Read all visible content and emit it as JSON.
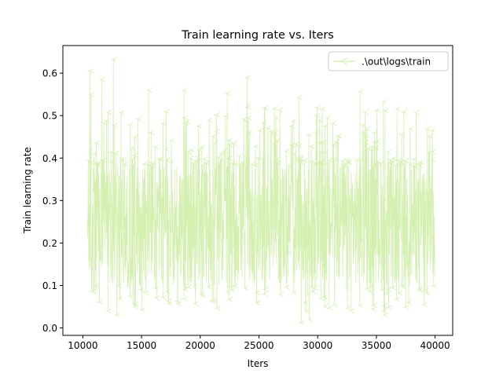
{
  "chart_data": {
    "type": "line",
    "title": "Train learning rate  vs. Iters",
    "xlabel": "Iters",
    "ylabel": "Train learning rate",
    "xlim": [
      8300,
      41500
    ],
    "ylim": [
      -0.0175,
      0.665
    ],
    "xticks": [
      10000,
      15000,
      20000,
      25000,
      30000,
      35000,
      40000
    ],
    "xtick_labels": [
      "10000",
      "15000",
      "20000",
      "25000",
      "30000",
      "35000",
      "40000"
    ],
    "yticks": [
      0.0,
      0.1,
      0.2,
      0.3,
      0.4,
      0.5,
      0.6
    ],
    "ytick_labels": [
      "0.0",
      "0.1",
      "0.2",
      "0.3",
      "0.4",
      "0.5",
      "0.6"
    ],
    "grid": false,
    "legend_position": "upper right",
    "series": [
      {
        "name": ".\\out\\logs\\train",
        "color": "#d3f0b0",
        "marker": "tri-left",
        "x_start": 10400,
        "x_end": 40000,
        "y_range_observed": [
          0.01,
          0.63
        ],
        "y_typical_band": [
          0.1,
          0.4
        ],
        "peaks": [
          {
            "x": 10600,
            "y": 0.605
          },
          {
            "x": 10700,
            "y": 0.55
          },
          {
            "x": 11600,
            "y": 0.585
          },
          {
            "x": 12600,
            "y": 0.632
          },
          {
            "x": 15600,
            "y": 0.56
          },
          {
            "x": 18600,
            "y": 0.56
          },
          {
            "x": 22300,
            "y": 0.553
          },
          {
            "x": 24000,
            "y": 0.59
          },
          {
            "x": 28400,
            "y": 0.543
          },
          {
            "x": 33600,
            "y": 0.557
          },
          {
            "x": 35600,
            "y": 0.532
          }
        ],
        "troughs": [
          {
            "x": 12900,
            "y": 0.03
          },
          {
            "x": 28600,
            "y": 0.012
          },
          {
            "x": 29300,
            "y": 0.02
          },
          {
            "x": 35700,
            "y": 0.03
          }
        ]
      }
    ]
  }
}
